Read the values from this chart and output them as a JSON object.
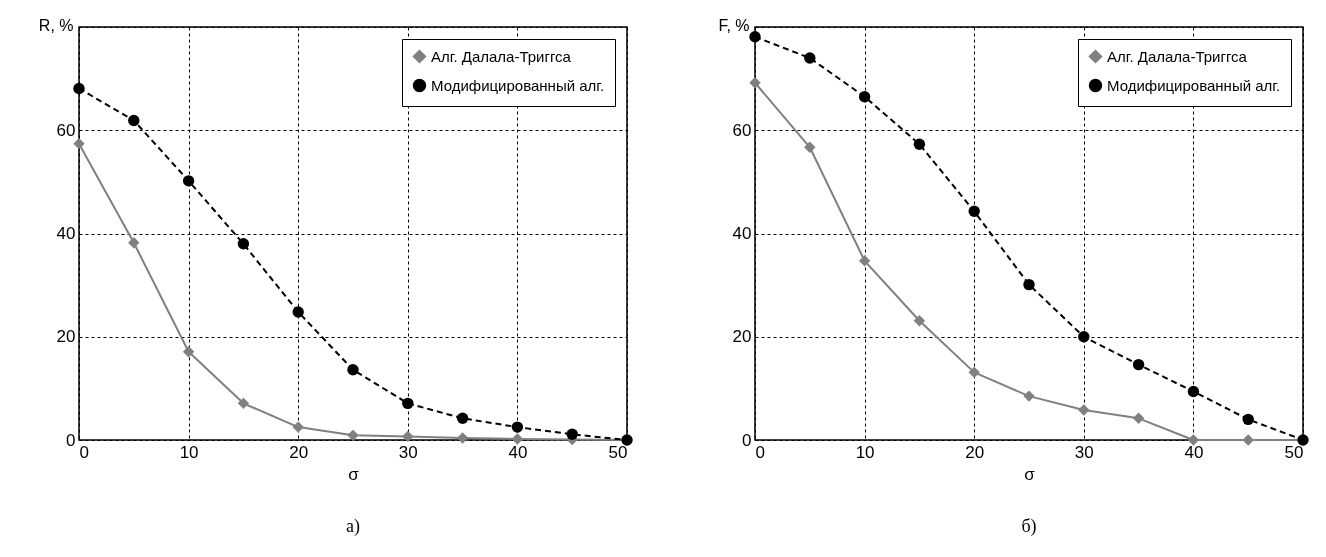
{
  "chart_data": [
    {
      "type": "line",
      "xlabel": "σ",
      "ylabel": "R, %",
      "annotations": [
        "а)"
      ],
      "x": [
        0,
        5,
        10,
        15,
        20,
        25,
        30,
        35,
        40,
        45,
        50
      ],
      "series": [
        {
          "name": "Алг. Далала-Триггса",
          "color": "#808080",
          "marker": "diamond",
          "line_style": "solid",
          "values": [
            57.4,
            38.2,
            17.1,
            7.1,
            2.5,
            0.9,
            0.7,
            0.4,
            0.2,
            0.1,
            0
          ]
        },
        {
          "name": "Модифицированный алг.",
          "color": "#000000",
          "marker": "circle",
          "line_style": "dashed",
          "values": [
            68.1,
            61.9,
            50.2,
            38,
            24.8,
            13.6,
            7.1,
            4.2,
            2.5,
            1.1,
            0
          ]
        }
      ],
      "xlim": [
        0,
        50
      ],
      "xticks": [
        0,
        10,
        20,
        30,
        40,
        50
      ],
      "ylim": [
        0,
        80
      ],
      "yticks": [
        0,
        20,
        40,
        60,
        {
          "value": 80,
          "label": null
        }
      ],
      "grid": true,
      "legend": "top right"
    },
    {
      "type": "line",
      "xlabel": "σ",
      "ylabel": "F, %",
      "annotations": [
        "б)"
      ],
      "x": [
        0,
        5,
        10,
        15,
        20,
        25,
        30,
        35,
        40,
        45,
        50
      ],
      "series": [
        {
          "name": "Алг. Далала-Триггса",
          "color": "#808080",
          "marker": "diamond",
          "line_style": "solid",
          "values": [
            69.2,
            56.7,
            34.7,
            23.1,
            13.1,
            8.5,
            5.8,
            4.2,
            0,
            0,
            0
          ]
        },
        {
          "name": "Модифицированный алг.",
          "color": "#000000",
          "marker": "circle",
          "line_style": "dashed",
          "values": [
            78.1,
            74,
            66.5,
            57.3,
            44.3,
            30.1,
            20,
            14.6,
            9.4,
            4,
            0
          ]
        }
      ],
      "xlim": [
        0,
        50
      ],
      "xticks": [
        0,
        10,
        20,
        30,
        40,
        50
      ],
      "ylim": [
        0,
        80
      ],
      "yticks": [
        0,
        20,
        40,
        60,
        {
          "value": 80,
          "label": null
        }
      ],
      "grid": true,
      "legend": "top right"
    }
  ]
}
